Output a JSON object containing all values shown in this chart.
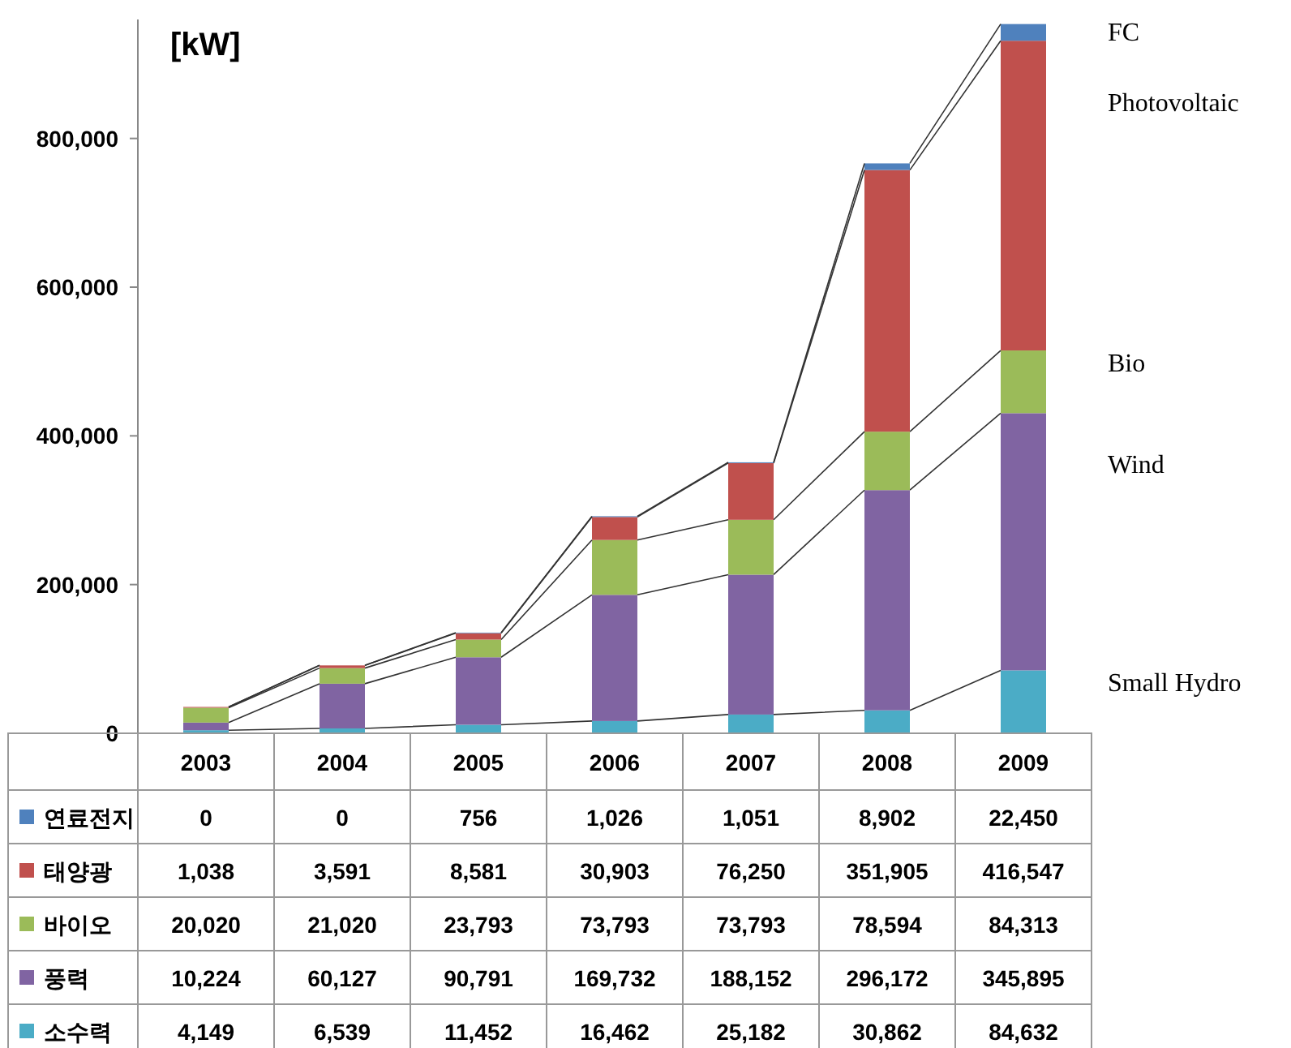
{
  "chart_data": {
    "type": "bar",
    "stacked": true,
    "legend": "bottom",
    "grid": false,
    "categories": [
      "2003",
      "2004",
      "2005",
      "2006",
      "2007",
      "2008",
      "2009"
    ],
    "ylim": [
      0,
      960000
    ],
    "yticks": [
      {
        "value": 0,
        "label": "0"
      },
      {
        "value": 200000,
        "label": "200,000"
      },
      {
        "value": 400000,
        "label": "400,000"
      },
      {
        "value": 600000,
        "label": "600,000"
      },
      {
        "value": 800000,
        "label": "800,000"
      }
    ],
    "series": [
      {
        "name": "소수력",
        "color": "#4bacc6",
        "values": [
          4149,
          6539,
          11452,
          16462,
          25182,
          30862,
          84632
        ],
        "value_labels": [
          "4,149",
          "6,539",
          "11,452",
          "16,462",
          "25,182",
          "30,862",
          "84,632"
        ]
      },
      {
        "name": "풍력",
        "color": "#8064a2",
        "values": [
          10224,
          60127,
          90791,
          169732,
          188152,
          296172,
          345895
        ],
        "value_labels": [
          "10,224",
          "60,127",
          "90,791",
          "169,732",
          "188,152",
          "296,172",
          "345,895"
        ]
      },
      {
        "name": "바이오",
        "color": "#9bbb59",
        "values": [
          20020,
          21020,
          23793,
          73793,
          73793,
          78594,
          84313
        ],
        "value_labels": [
          "20,020",
          "21,020",
          "23,793",
          "73,793",
          "73,793",
          "78,594",
          "84,313"
        ]
      },
      {
        "name": "태양광",
        "color": "#c0504d",
        "values": [
          1038,
          3591,
          8581,
          30903,
          76250,
          351905,
          416547
        ],
        "value_labels": [
          "1,038",
          "3,591",
          "8,581",
          "30,903",
          "76,250",
          "351,905",
          "416,547"
        ]
      },
      {
        "name": "연료전지",
        "color": "#4f81bd",
        "values": [
          0,
          0,
          756,
          1026,
          1051,
          8902,
          22450
        ],
        "value_labels": [
          "0",
          "0",
          "756",
          "1,026",
          "1,051",
          "8,902",
          "22,450"
        ]
      }
    ],
    "annotations": [
      "[kW]",
      "FC",
      "Photovoltaic",
      "Bio",
      "Wind",
      "Small Hydro"
    ]
  }
}
